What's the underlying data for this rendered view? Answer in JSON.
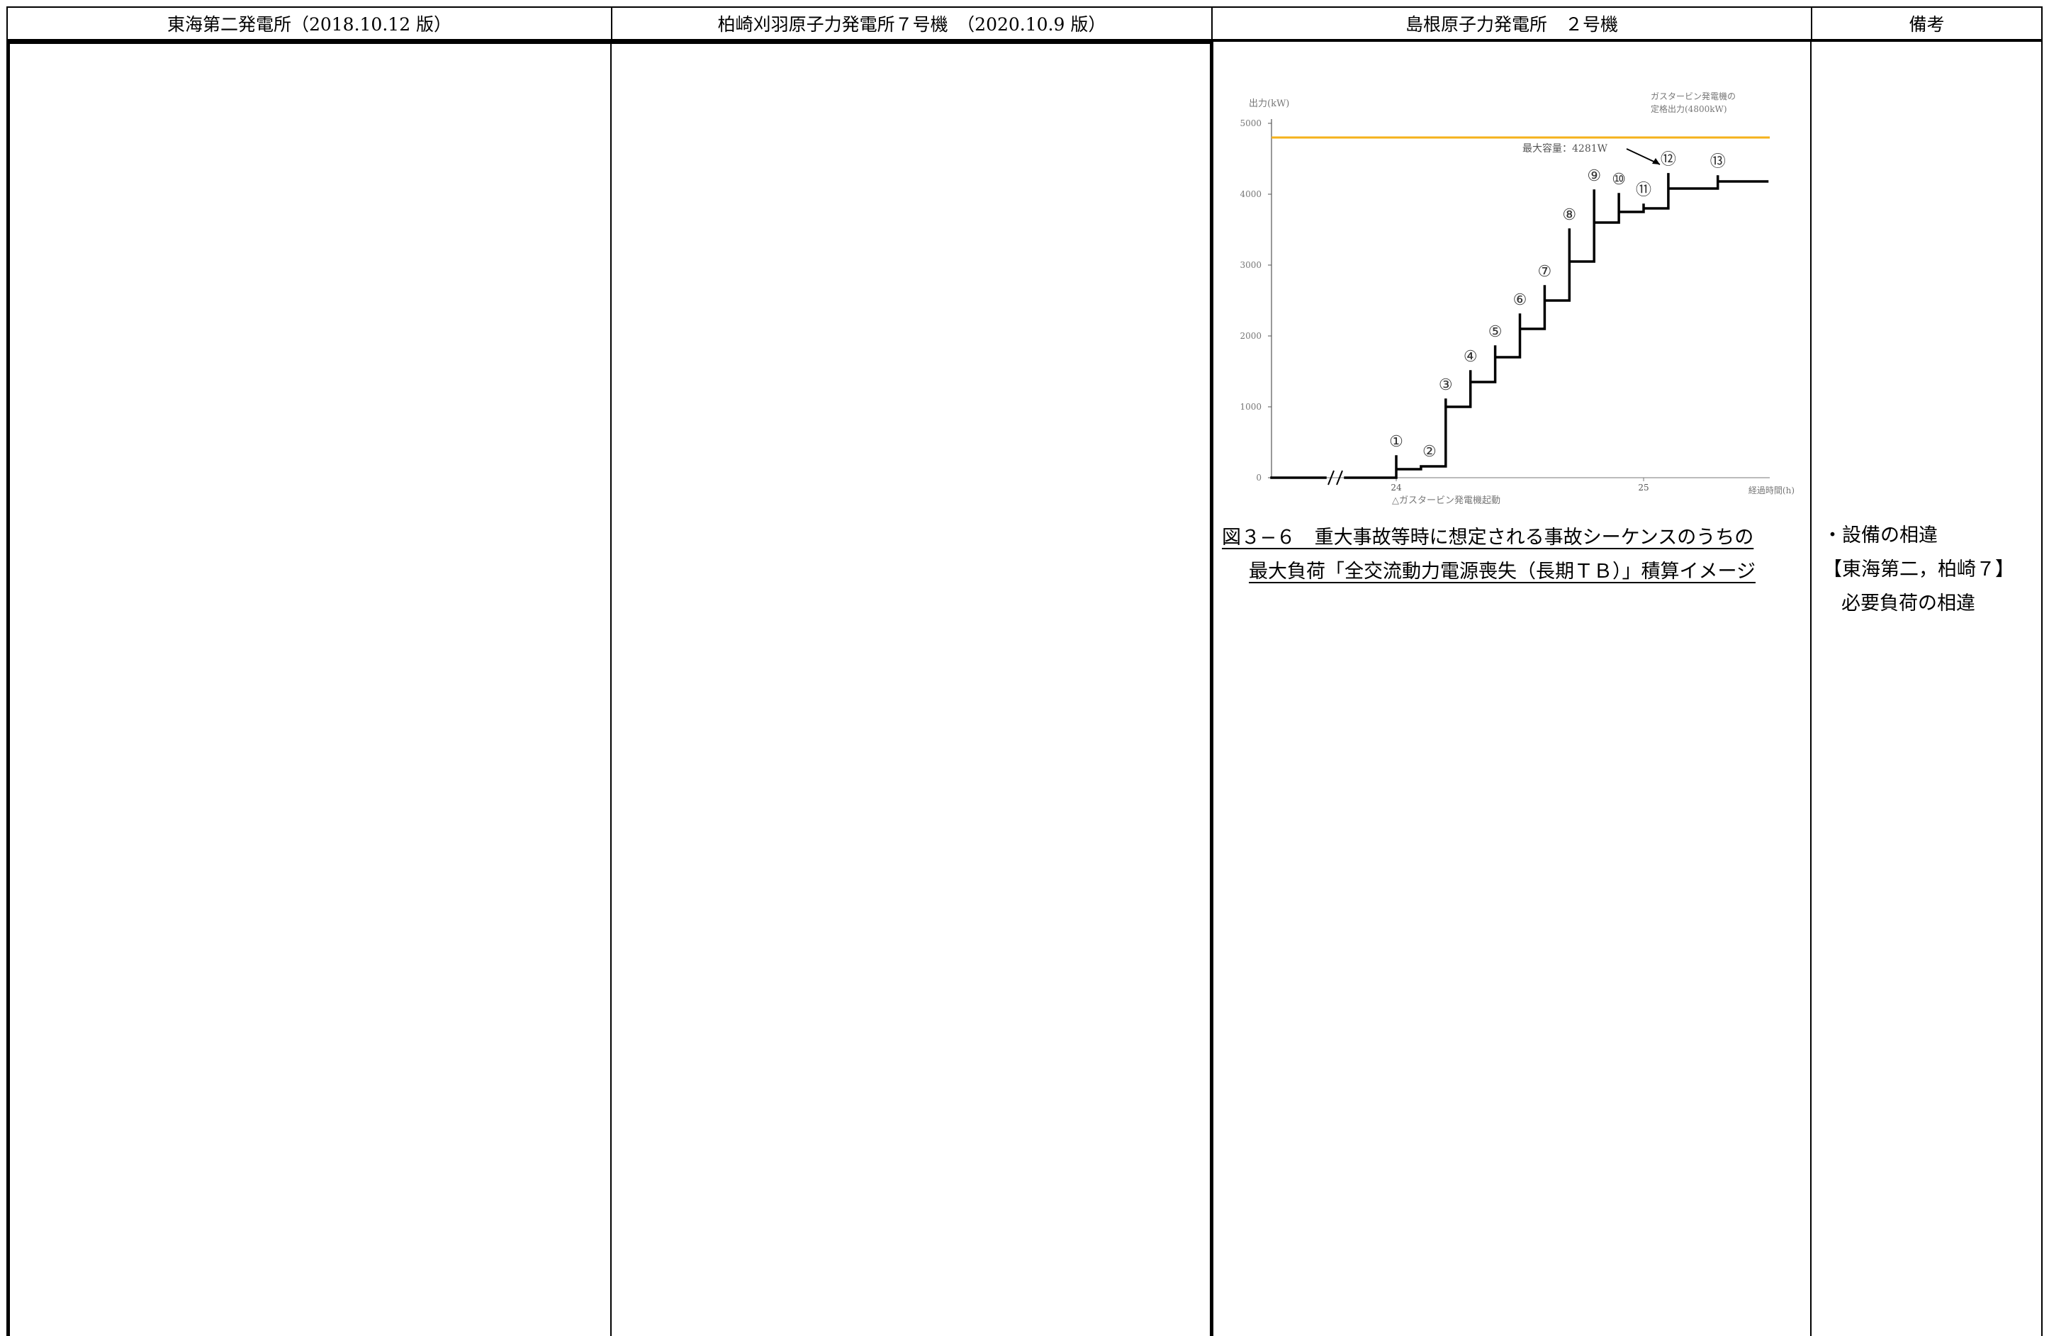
{
  "headers": {
    "col1": "東海第二発電所（2018.10.12 版）",
    "col2": "柏崎刈羽原子力発電所７号機　（2020.10.9 版）",
    "col3": "島根原子力発電所　２号機",
    "col4": "備考"
  },
  "figure": {
    "caption_line1": "図３−６　重大事故等時に想定される事故シーケンスのうちの",
    "caption_line2": "最大負荷「全交流動力電源喪失（長期ＴＢ）」積算イメージ"
  },
  "chart_data": {
    "type": "line",
    "ylabel": "出力(kW)",
    "xlabel": "経過時間(h)",
    "ylim": [
      0,
      5000
    ],
    "y_ticks": [
      "0",
      "1000",
      "2000",
      "3000",
      "4000",
      "5000"
    ],
    "x_ticks": [
      "24",
      "25"
    ],
    "rated_output": {
      "label_line1": "ガスタービン発電機の",
      "label_line2": "定格出力(4800kW)",
      "value": 4800,
      "color": "#f5b21b"
    },
    "max_capacity_label": "最大容量：4281W",
    "start_label": "△ガスタービン発電機起動",
    "series_color": "#000000",
    "steps": [
      {
        "x": 24.0,
        "base": 0,
        "peak": 300,
        "settle": 120,
        "marker": "①"
      },
      {
        "x": 24.1,
        "base": 120,
        "peak": 160,
        "settle": 160,
        "marker": "②"
      },
      {
        "x": 24.2,
        "base": 160,
        "peak": 1100,
        "settle": 1000,
        "marker": "③"
      },
      {
        "x": 24.3,
        "base": 1000,
        "peak": 1500,
        "settle": 1350,
        "marker": "④"
      },
      {
        "x": 24.4,
        "base": 1350,
        "peak": 1850,
        "settle": 1700,
        "marker": "⑤"
      },
      {
        "x": 24.5,
        "base": 1700,
        "peak": 2300,
        "settle": 2100,
        "marker": "⑥"
      },
      {
        "x": 24.6,
        "base": 2100,
        "peak": 2700,
        "settle": 2500,
        "marker": "⑦"
      },
      {
        "x": 24.7,
        "base": 2500,
        "peak": 3500,
        "settle": 3050,
        "marker": "⑧"
      },
      {
        "x": 24.8,
        "base": 3050,
        "peak": 4050,
        "settle": 3600,
        "marker": "⑨"
      },
      {
        "x": 24.9,
        "base": 3600,
        "peak": 4000,
        "settle": 3750,
        "marker": "⑩"
      },
      {
        "x": 25.0,
        "base": 3750,
        "peak": 3850,
        "settle": 3800,
        "marker": "⑪"
      },
      {
        "x": 25.1,
        "base": 3800,
        "peak": 4281,
        "settle": 4080,
        "marker": "⑫"
      },
      {
        "x": 25.3,
        "base": 4080,
        "peak": 4250,
        "settle": 4180,
        "marker": "⑬"
      }
    ],
    "x_end": 25.5
  },
  "remarks": {
    "line1": "・設備の相違",
    "line2": "【東海第二，柏崎７】",
    "line3": "必要負荷の相違"
  }
}
